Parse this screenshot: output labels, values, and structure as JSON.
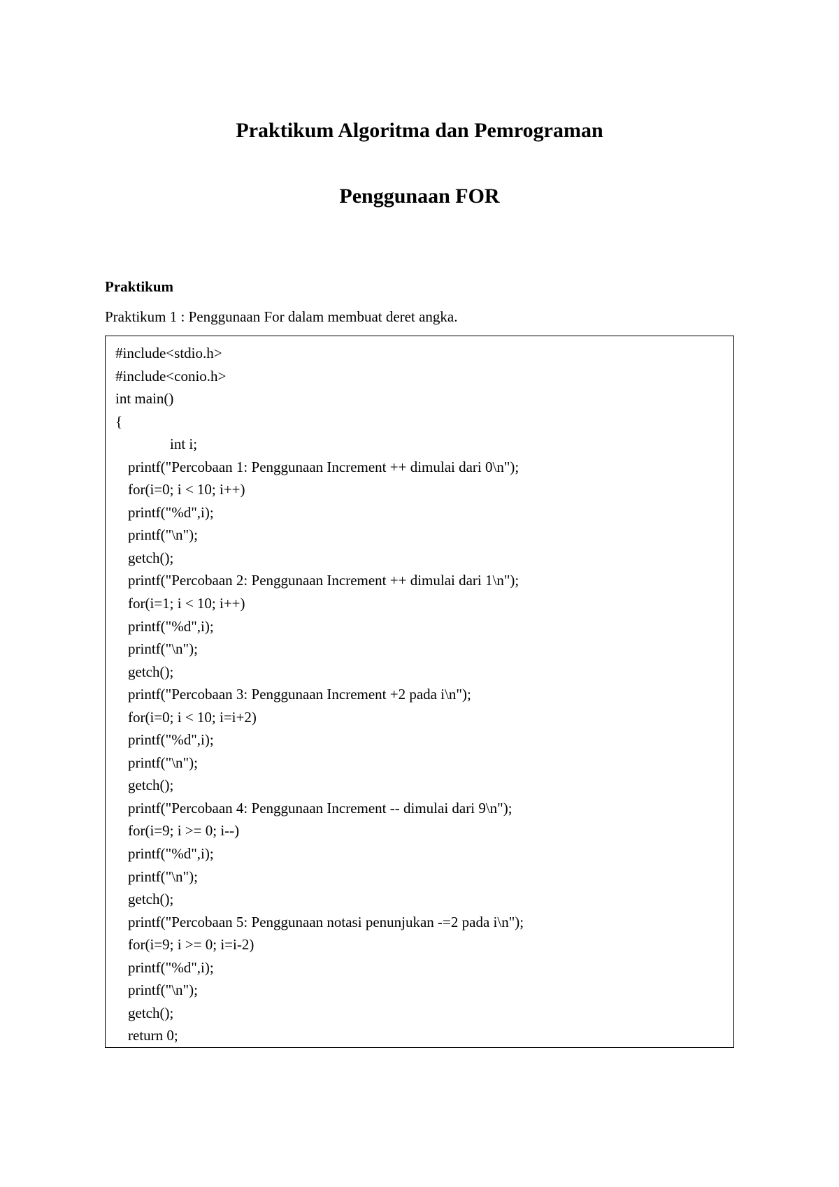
{
  "background_color": "#ffffff",
  "text_color": "#000000",
  "font_family": "Times New Roman",
  "title": {
    "line1": "Praktikum Algoritma dan Pemrograman",
    "line2": "Penggunaan FOR",
    "fontsize": 30,
    "fontweight": "bold",
    "align": "center"
  },
  "section": {
    "heading": "Praktikum",
    "heading_fontsize": 21,
    "heading_fontweight": "bold",
    "intro": "Praktikum 1 : Penggunaan For dalam membuat deret angka.",
    "intro_fontsize": 21
  },
  "code_box": {
    "border_color": "#000000",
    "border_width": 1,
    "fontsize": 21,
    "line_height": 1.55,
    "lines": [
      {
        "indent": 0,
        "text": "#include<stdio.h>"
      },
      {
        "indent": 0,
        "text": "#include<conio.h>"
      },
      {
        "indent": 0,
        "text": "int main()"
      },
      {
        "indent": 0,
        "text": "{"
      },
      {
        "indent": 2,
        "text": "int i;"
      },
      {
        "indent": 1,
        "text": "printf(\"Percobaan 1: Penggunaan Increment ++ dimulai dari 0\\n\");"
      },
      {
        "indent": 1,
        "text": "for(i=0; i < 10; i++)"
      },
      {
        "indent": 1,
        "text": "printf(\"%d\",i);"
      },
      {
        "indent": 1,
        "text": "printf(\"\\n\");"
      },
      {
        "indent": 1,
        "text": "getch();"
      },
      {
        "indent": 1,
        "text": "printf(\"Percobaan 2: Penggunaan Increment ++ dimulai dari 1\\n\");"
      },
      {
        "indent": 1,
        "text": "for(i=1; i < 10; i++)"
      },
      {
        "indent": 1,
        "text": "printf(\"%d\",i);"
      },
      {
        "indent": 1,
        "text": "printf(\"\\n\");"
      },
      {
        "indent": 1,
        "text": "getch();"
      },
      {
        "indent": 1,
        "text": "printf(\"Percobaan 3: Penggunaan Increment +2 pada i\\n\");"
      },
      {
        "indent": 1,
        "text": "for(i=0; i < 10; i=i+2)"
      },
      {
        "indent": 1,
        "text": "printf(\"%d\",i);"
      },
      {
        "indent": 1,
        "text": "printf(\"\\n\");"
      },
      {
        "indent": 1,
        "text": "getch();"
      },
      {
        "indent": 1,
        "text": "printf(\"Percobaan 4: Penggunaan Increment -- dimulai dari 9\\n\");"
      },
      {
        "indent": 1,
        "text": "for(i=9; i >= 0; i--)"
      },
      {
        "indent": 1,
        "text": "printf(\"%d\",i);"
      },
      {
        "indent": 1,
        "text": "printf(\"\\n\");"
      },
      {
        "indent": 1,
        "text": "getch();"
      },
      {
        "indent": 1,
        "text": "printf(\"Percobaan 5: Penggunaan notasi penunjukan -=2 pada i\\n\");"
      },
      {
        "indent": 1,
        "text": "for(i=9; i >= 0; i=i-2)"
      },
      {
        "indent": 1,
        "text": "printf(\"%d\",i);"
      },
      {
        "indent": 1,
        "text": "printf(\"\\n\");"
      },
      {
        "indent": 1,
        "text": "getch();"
      },
      {
        "indent": 1,
        "text": "return 0;"
      }
    ]
  }
}
